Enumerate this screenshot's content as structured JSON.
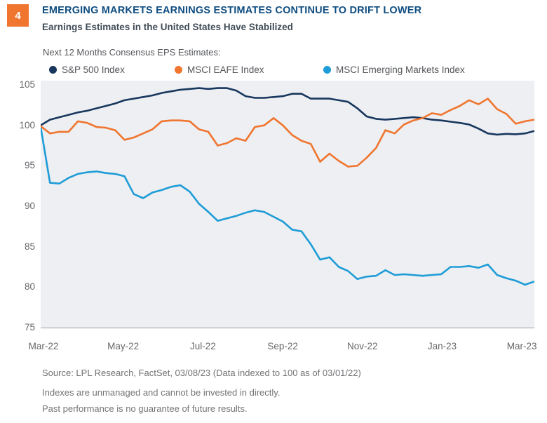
{
  "figure_number": "4",
  "header": {
    "title": "EMERGING MARKETS EARNINGS ESTIMATES CONTINUE TO DRIFT LOWER",
    "subtitle": "Earnings Estimates in the United States Have Stabilized"
  },
  "series_caption": "Next 12 Months Consensus EPS Estimates:",
  "legend": [
    {
      "label": "S&P 500 Index",
      "color": "#18375E"
    },
    {
      "label": "MSCI EAFE Index",
      "color": "#F0752F"
    },
    {
      "label": "MSCI Emerging Markets Index",
      "color": "#1E9CD7"
    }
  ],
  "footer": {
    "source": "Source: LPL Research, FactSet,  03/08/23  (Data indexed to 100 as of 03/01/22)",
    "disclaimer1": "Indexes are unmanaged and cannot be invested in directly.",
    "disclaimer2": "Past performance is no guarantee of future results."
  },
  "colors": {
    "accent_orange": "#F0752F",
    "title_blue": "#0F4D80",
    "subtitle_gray": "#404B56",
    "text_gray": "#54565A",
    "axis_gray": "#66676A",
    "footer_gray": "#737477",
    "plot_background": "#EDEFF2",
    "axis_line": "#9C9EA1"
  },
  "chart_data": {
    "type": "line",
    "title": "EMERGING MARKETS EARNINGS ESTIMATES CONTINUE TO DRIFT LOWER",
    "subtitle": "Earnings Estimates in the United States Have Stabilized",
    "caption": "Next 12 Months Consensus EPS Estimates:",
    "xlabel": "",
    "ylabel": "",
    "x_tick_labels": [
      "Mar-22",
      "May-22",
      "Jul-22",
      "Sep-22",
      "Nov-22",
      "Jan-23",
      "Mar-23"
    ],
    "x_range": "Mar-22 to Mar-23, weekly samples",
    "ylim": [
      75,
      105
    ],
    "yticks": [
      75,
      80,
      85,
      90,
      95,
      100,
      105
    ],
    "grid": false,
    "legend_position": "top",
    "indexed_note": "Data indexed to 100 as of 03/01/22",
    "series": [
      {
        "id": "sp500",
        "name": "S&P 500 Index",
        "color": "#18375E",
        "values": [
          100.0,
          100.7,
          101.0,
          101.3,
          101.6,
          101.8,
          102.1,
          102.4,
          102.7,
          103.1,
          103.3,
          103.5,
          103.7,
          104.0,
          104.2,
          104.4,
          104.5,
          104.6,
          104.5,
          104.6,
          104.6,
          104.3,
          103.6,
          103.4,
          103.4,
          103.5,
          103.6,
          103.9,
          103.9,
          103.3,
          103.3,
          103.3,
          103.1,
          102.9,
          102.1,
          101.1,
          100.8,
          100.7,
          100.8,
          100.9,
          101.0,
          100.9,
          100.7,
          100.6,
          100.45,
          100.3,
          100.1,
          99.6,
          99.0,
          98.85,
          98.95,
          98.9,
          99.0,
          99.3
        ]
      },
      {
        "id": "eafe",
        "name": "MSCI EAFE Index",
        "color": "#F0752F",
        "values": [
          99.9,
          99.0,
          99.2,
          99.2,
          100.5,
          100.3,
          99.8,
          99.7,
          99.4,
          98.2,
          98.5,
          99.0,
          99.5,
          100.5,
          100.6,
          100.6,
          100.5,
          99.5,
          99.2,
          97.5,
          97.8,
          98.4,
          98.1,
          99.8,
          100.0,
          100.9,
          100.0,
          98.8,
          98.1,
          97.7,
          95.5,
          96.5,
          95.6,
          94.9,
          95.0,
          96.0,
          97.2,
          99.4,
          99.0,
          100.1,
          100.6,
          100.9,
          101.5,
          101.3,
          101.9,
          102.4,
          103.1,
          102.6,
          103.3,
          102.0,
          101.4,
          100.2,
          100.5,
          100.7
        ]
      },
      {
        "id": "em",
        "name": "MSCI Emerging Markets Index",
        "color": "#1E9CD7",
        "values": [
          99.8,
          92.9,
          92.8,
          93.5,
          94.0,
          94.2,
          94.3,
          94.1,
          94.0,
          93.7,
          91.5,
          91.0,
          91.7,
          92.0,
          92.4,
          92.6,
          91.8,
          90.3,
          89.3,
          88.2,
          88.5,
          88.8,
          89.2,
          89.5,
          89.3,
          88.7,
          88.1,
          87.1,
          86.9,
          85.3,
          83.4,
          83.7,
          82.5,
          82.0,
          81.0,
          81.3,
          81.4,
          82.1,
          81.5,
          81.6,
          81.5,
          81.4,
          81.5,
          81.6,
          82.5,
          82.5,
          82.6,
          82.4,
          82.8,
          81.5,
          81.1,
          80.8,
          80.3,
          80.7
        ]
      }
    ]
  }
}
